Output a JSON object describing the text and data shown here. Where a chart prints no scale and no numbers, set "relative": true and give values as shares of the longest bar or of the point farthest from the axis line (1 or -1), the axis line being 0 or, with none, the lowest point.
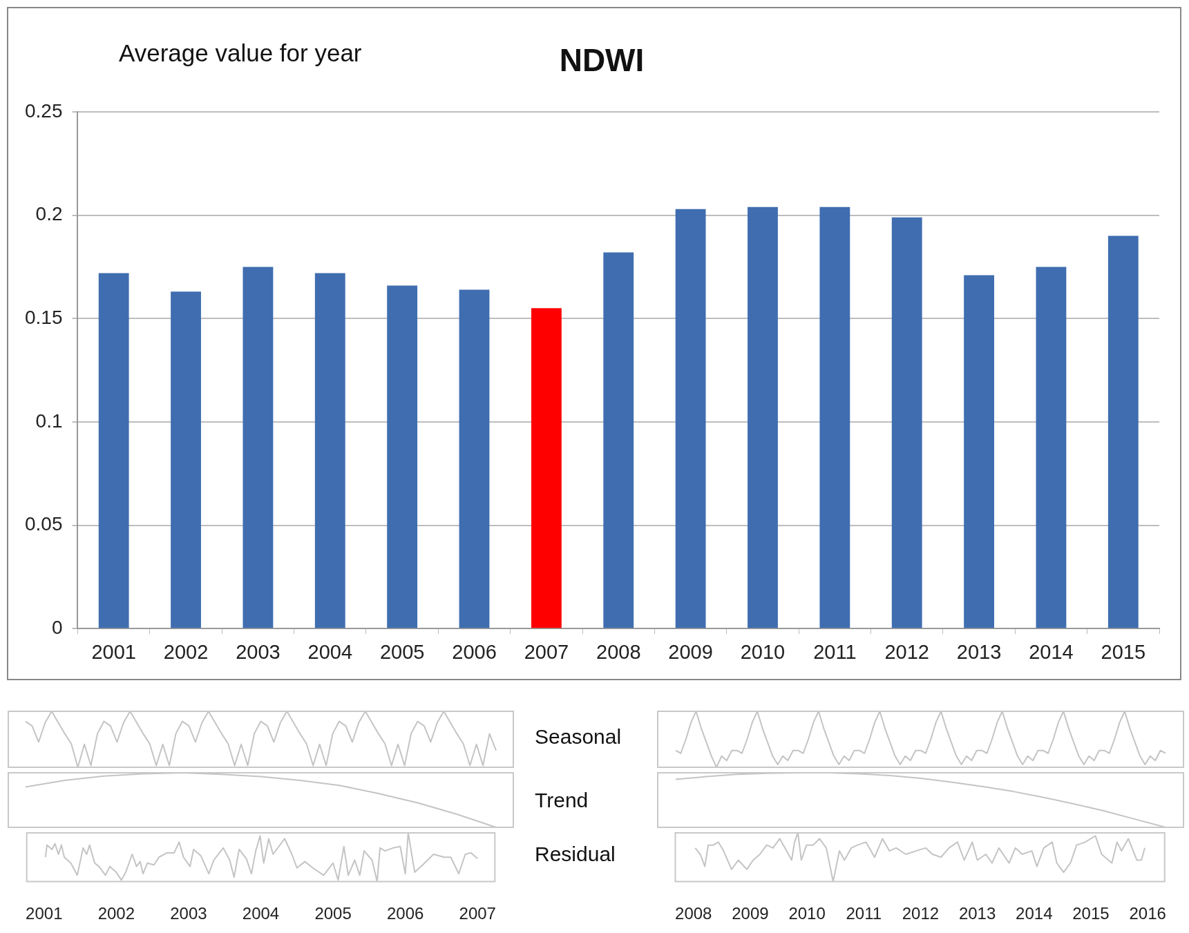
{
  "chart_data": [
    {
      "type": "bar",
      "title": "NDWI",
      "subtitle": "Average value for year",
      "categories": [
        "2001",
        "2002",
        "2003",
        "2004",
        "2005",
        "2006",
        "2007",
        "2008",
        "2009",
        "2010",
        "2011",
        "2012",
        "2013",
        "2014",
        "2015"
      ],
      "values": [
        0.172,
        0.163,
        0.175,
        0.172,
        0.166,
        0.164,
        0.155,
        0.182,
        0.203,
        0.204,
        0.204,
        0.199,
        0.171,
        0.175,
        0.19
      ],
      "colors": [
        "#3f6db0",
        "#3f6db0",
        "#3f6db0",
        "#3f6db0",
        "#3f6db0",
        "#3f6db0",
        "#ff0000",
        "#3f6db0",
        "#3f6db0",
        "#3f6db0",
        "#3f6db0",
        "#3f6db0",
        "#3f6db0",
        "#3f6db0",
        "#3f6db0"
      ],
      "ylim": [
        0,
        0.25
      ],
      "yticks": [
        0,
        0.05,
        0.1,
        0.15,
        0.2,
        0.25
      ],
      "grid": "y"
    },
    {
      "type": "line",
      "relative": true,
      "color": "#c4c4c4",
      "tick_labels": false,
      "categories": [
        null,
        null,
        null,
        null,
        null,
        null,
        null,
        null,
        null,
        null,
        null,
        null,
        null,
        null,
        null,
        null,
        null,
        null,
        null,
        null,
        null,
        null,
        null,
        null,
        null,
        null,
        null,
        null,
        null,
        null,
        null,
        null,
        null,
        null,
        null,
        null,
        null,
        null,
        null,
        null,
        null,
        null,
        null,
        null,
        null,
        null,
        null,
        null,
        null,
        null,
        null,
        null,
        null,
        null,
        null,
        null,
        null,
        null,
        null,
        null,
        null,
        null,
        null,
        null,
        null,
        null,
        null,
        null,
        null,
        null,
        null,
        null,
        null
      ],
      "values": [
        0.82,
        0.74,
        0.45,
        0.8,
        1,
        0.8,
        0.6,
        0.42,
        0,
        0.41,
        0.03,
        0.6,
        0.82,
        0.74,
        0.45,
        0.8,
        1,
        0.8,
        0.6,
        0.42,
        0.03,
        0.41,
        0.03,
        0.6,
        0.82,
        0.74,
        0.45,
        0.8,
        1,
        0.8,
        0.6,
        0.42,
        0.03,
        0.41,
        0.03,
        0.6,
        0.82,
        0.74,
        0.45,
        0.8,
        1,
        0.8,
        0.6,
        0.42,
        0.03,
        0.41,
        0.03,
        0.6,
        0.82,
        0.74,
        0.45,
        0.8,
        1,
        0.8,
        0.6,
        0.42,
        0.03,
        0.41,
        0.03,
        0.6,
        0.82,
        0.74,
        0.45,
        0.8,
        1,
        0.8,
        0.6,
        0.42,
        0.03,
        0.41,
        0.03,
        0.6,
        0.3
      ]
    },
    {
      "type": "line",
      "relative": true,
      "color": "#c4c4c4",
      "tick_labels": false,
      "categories": [
        null,
        null,
        null,
        null,
        null,
        null,
        null,
        null,
        null,
        null,
        null,
        null,
        null
      ],
      "values": [
        0.74,
        0.86,
        0.94,
        0.98,
        1,
        0.97,
        0.93,
        0.86,
        0.77,
        0.62,
        0.45,
        0.24,
        0
      ]
    },
    {
      "type": "line",
      "relative": true,
      "color": "#c4c4c4",
      "tick_labels": "x",
      "x": [
        2001.02,
        2001.04,
        2001.11,
        2001.15,
        2001.2,
        2001.24,
        2001.28,
        2001.37,
        2001.46,
        2001.54,
        2001.59,
        2001.63,
        2001.7,
        2001.76,
        2001.85,
        2001.91,
        2002,
        2002.07,
        2002.13,
        2002.22,
        2002.28,
        2002.33,
        2002.37,
        2002.43,
        2002.52,
        2002.59,
        2002.7,
        2002.8,
        2002.87,
        2002.93,
        2003.02,
        2003.07,
        2003.17,
        2003.28,
        2003.35,
        2003.48,
        2003.57,
        2003.63,
        2003.7,
        2003.8,
        2003.87,
        2003.93,
        2003.99,
        2004.04,
        2004.11,
        2004.17,
        2004.33,
        2004.43,
        2004.5,
        2004.61,
        2004.72,
        2004.87,
        2005,
        2005.07,
        2005.15,
        2005.21,
        2005.3,
        2005.37,
        2005.43,
        2005.54,
        2005.61,
        2005.65,
        2005.72,
        2005.83,
        2005.93,
        2006,
        2006.04,
        2006.13,
        2006.24,
        2006.39,
        2006.54,
        2006.63,
        2006.74,
        2006.83,
        2006.91,
        2007
      ],
      "values": [
        0.5,
        0.75,
        0.66,
        0.78,
        0.56,
        0.75,
        0.5,
        0.38,
        0.13,
        0.69,
        0.56,
        0.75,
        0.38,
        0.31,
        0.13,
        0.31,
        0.19,
        0.03,
        0.19,
        0.56,
        0.31,
        0.41,
        0.16,
        0.38,
        0.34,
        0.5,
        0.59,
        0.59,
        0.81,
        0.5,
        0.31,
        0.66,
        0.53,
        0.16,
        0.44,
        0.69,
        0.44,
        0.09,
        0.66,
        0.47,
        0.16,
        0.63,
        0.94,
        0.38,
        0.88,
        0.56,
        0.88,
        0.56,
        0.28,
        0.41,
        0.28,
        0.13,
        0.38,
        0.03,
        0.72,
        0.13,
        0.44,
        0.13,
        0.63,
        0.44,
        0,
        0.69,
        0.63,
        0.69,
        0.72,
        0.16,
        1,
        0.19,
        0.34,
        0.56,
        0.5,
        0.5,
        0.16,
        0.56,
        0.59,
        0.47
      ],
      "xlim": [
        2000.76,
        2007.24
      ],
      "xticks": [
        2001,
        2002,
        2003,
        2004,
        2005,
        2006,
        2007
      ]
    },
    {
      "type": "other",
      "annotations": [
        "Seasonal",
        "Trend",
        "Residual"
      ]
    },
    {
      "type": "line",
      "relative": true,
      "color": "#c4c4c4",
      "tick_labels": false,
      "categories": [
        null,
        null,
        null,
        null,
        null,
        null,
        null,
        null,
        null,
        null,
        null,
        null,
        null,
        null,
        null,
        null,
        null,
        null,
        null,
        null,
        null,
        null,
        null,
        null,
        null,
        null,
        null,
        null,
        null,
        null,
        null,
        null,
        null,
        null,
        null,
        null,
        null,
        null,
        null,
        null,
        null,
        null,
        null,
        null,
        null,
        null,
        null,
        null,
        null,
        null,
        null,
        null,
        null,
        null,
        null,
        null,
        null,
        null,
        null,
        null,
        null,
        null,
        null,
        null,
        null,
        null,
        null,
        null,
        null,
        null,
        null,
        null,
        null,
        null,
        null,
        null,
        null,
        null,
        null,
        null,
        null,
        null,
        null,
        null,
        null,
        null,
        null,
        null,
        null,
        null,
        null,
        null,
        null,
        null,
        null,
        null,
        null
      ],
      "values": [
        0.3,
        0.25,
        0.5,
        0.8,
        1,
        0.7,
        0.45,
        0.2,
        0,
        0.2,
        0.12,
        0.3,
        0.3,
        0.25,
        0.5,
        0.8,
        1,
        0.7,
        0.45,
        0.2,
        0.05,
        0.2,
        0.12,
        0.3,
        0.3,
        0.25,
        0.5,
        0.8,
        1,
        0.7,
        0.45,
        0.2,
        0.05,
        0.2,
        0.12,
        0.3,
        0.3,
        0.25,
        0.5,
        0.8,
        1,
        0.7,
        0.45,
        0.2,
        0.05,
        0.2,
        0.12,
        0.3,
        0.3,
        0.25,
        0.5,
        0.8,
        1,
        0.7,
        0.45,
        0.2,
        0.05,
        0.2,
        0.12,
        0.3,
        0.3,
        0.25,
        0.5,
        0.8,
        1,
        0.7,
        0.45,
        0.2,
        0.05,
        0.2,
        0.12,
        0.3,
        0.3,
        0.25,
        0.5,
        0.8,
        1,
        0.7,
        0.45,
        0.2,
        0.05,
        0.2,
        0.12,
        0.3,
        0.3,
        0.25,
        0.5,
        0.8,
        1,
        0.7,
        0.45,
        0.2,
        0.05,
        0.2,
        0.12,
        0.3,
        0.25
      ]
    },
    {
      "type": "line",
      "relative": true,
      "color": "#c4c4c4",
      "tick_labels": false,
      "categories": [
        null,
        null,
        null,
        null,
        null,
        null,
        null,
        null,
        null,
        null,
        null,
        null,
        null,
        null,
        null,
        null,
        null
      ],
      "values": [
        0.88,
        0.93,
        0.97,
        0.99,
        1,
        1,
        0.98,
        0.95,
        0.9,
        0.83,
        0.75,
        0.66,
        0.55,
        0.43,
        0.3,
        0.15,
        0
      ]
    },
    {
      "type": "line",
      "relative": true,
      "color": "#c4c4c4",
      "tick_labels": "x",
      "x": [
        2008.03,
        2008.12,
        2008.2,
        2008.26,
        2008.35,
        2008.44,
        2008.53,
        2008.67,
        2008.79,
        2008.94,
        2009.05,
        2009.17,
        2009.29,
        2009.4,
        2009.52,
        2009.64,
        2009.73,
        2009.78,
        2009.84,
        2009.9,
        2009.99,
        2010.11,
        2010.22,
        2010.34,
        2010.46,
        2010.57,
        2010.66,
        2010.78,
        2010.89,
        2011.04,
        2011.19,
        2011.33,
        2011.45,
        2011.57,
        2011.74,
        2011.92,
        2012.09,
        2012.21,
        2012.36,
        2012.5,
        2012.65,
        2012.77,
        2012.91,
        2013,
        2013.15,
        2013.26,
        2013.38,
        2013.56,
        2013.67,
        2013.79,
        2013.96,
        2014.05,
        2014.17,
        2014.32,
        2014.4,
        2014.52,
        2014.64,
        2014.75,
        2014.9,
        2015.08,
        2015.19,
        2015.37,
        2015.46,
        2015.54,
        2015.66,
        2015.81,
        2015.89,
        2015.95
      ],
      "values": [
        0.69,
        0.56,
        0.31,
        0.75,
        0.75,
        0.81,
        0.63,
        0.25,
        0.44,
        0.25,
        0.44,
        0.56,
        0.75,
        0.69,
        0.88,
        0.63,
        0.44,
        0.81,
        1,
        0.44,
        0.75,
        0.75,
        0.88,
        0.69,
        0,
        0.63,
        0.44,
        0.69,
        0.75,
        0.81,
        0.5,
        0.88,
        0.63,
        0.69,
        0.56,
        0.63,
        0.69,
        0.56,
        0.5,
        0.69,
        0.81,
        0.44,
        0.81,
        0.44,
        0.56,
        0.38,
        0.69,
        0.38,
        0.69,
        0.56,
        0.63,
        0.31,
        0.69,
        0.81,
        0.38,
        0.19,
        0.38,
        0.75,
        0.81,
        0.94,
        0.56,
        0.38,
        0.81,
        0.63,
        0.88,
        0.44,
        0.44,
        0.69
      ],
      "xlim": [
        2007.68,
        2016.3
      ],
      "xticks": [
        2008,
        2009,
        2010,
        2011,
        2012,
        2013,
        2014,
        2015,
        2016
      ]
    }
  ]
}
